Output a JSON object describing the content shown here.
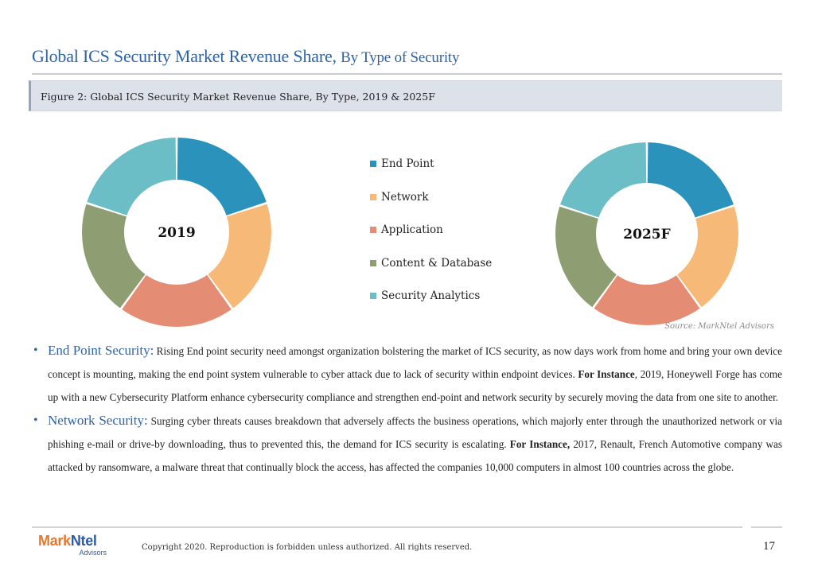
{
  "header": {
    "title_main": "Global ICS Security Market Revenue Share,",
    "title_sub": "By Type of Security"
  },
  "figure": {
    "caption": "Figure 2: Global ICS Security Market Revenue Share, By Type, 2019 & 2025F"
  },
  "chart_data": [
    {
      "type": "pie",
      "donut": true,
      "center_label": "2019",
      "categories": [
        "End Point",
        "Network",
        "Application",
        "Content & Database",
        "Security Analytics"
      ],
      "values": [
        20,
        20,
        20,
        20,
        20
      ],
      "colors": [
        "#2b93bb",
        "#f7b977",
        "#e48c74",
        "#8f9e72",
        "#6bbec6"
      ]
    },
    {
      "type": "pie",
      "donut": true,
      "center_label": "2025F",
      "categories": [
        "End Point",
        "Network",
        "Application",
        "Content & Database",
        "Security Analytics"
      ],
      "values": [
        20,
        20,
        20,
        20,
        20
      ],
      "colors": [
        "#2b93bb",
        "#f7b977",
        "#e48c74",
        "#8f9e72",
        "#6bbec6"
      ]
    }
  ],
  "legend": [
    {
      "label": "End Point",
      "color": "#2b93bb"
    },
    {
      "label": "Network",
      "color": "#f7b977"
    },
    {
      "label": "Application",
      "color": "#e48c74"
    },
    {
      "label": "Content & Database",
      "color": "#8f9e72"
    },
    {
      "label": "Security Analytics",
      "color": "#6bbec6"
    }
  ],
  "source": "Source: MarkNtel Advisors",
  "bullets": [
    {
      "lead": "End Point Security:",
      "text1": " Rising End point security need amongst organization bolstering the market of ICS security, as now days work from home and bring your own device concept is mounting, making the end point system vulnerable to cyber attack due to lack of security within endpoint devices. ",
      "bold": "For Instance",
      "text2": ", 2019, Honeywell Forge has come up with a new Cybersecurity Platform enhance cybersecurity compliance and strengthen end-point and network security by securely moving the data from one site to another."
    },
    {
      "lead": "Network Security:",
      "text1": " Surging cyber threats causes breakdown that adversely affects the business operations, which majorly enter through the unauthorized network or via phishing e-mail or drive-by downloading, thus to prevented this, the demand for ICS security is escalating. ",
      "bold": "For Instance,",
      "text2": " 2017, Renault, French Automotive company was attacked by ransomware, a malware threat that continually block the access, has affected the companies 10,000 computers in almost 100 countries across the globe."
    }
  ],
  "footer": {
    "logo_part1": "Mark",
    "logo_part2": "Ntel",
    "logo_tag": "Advisors",
    "copyright": "Copyright 2020. Reproduction is forbidden unless authorized. All rights reserved.",
    "page_number": "17"
  }
}
